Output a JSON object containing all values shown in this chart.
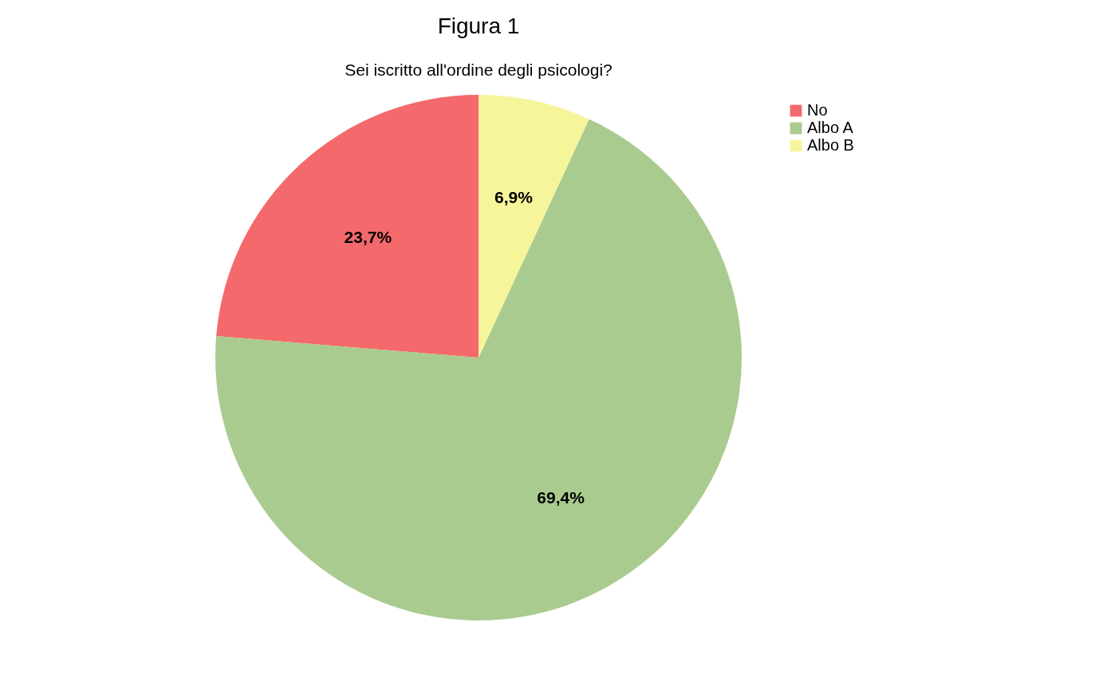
{
  "chart_data": {
    "type": "pie",
    "title": "Figura 1",
    "subtitle": "Sei iscritto all'ordine degli psicologi?",
    "categories": [
      "No",
      "Albo A",
      "Albo B"
    ],
    "values": [
      23.7,
      69.4,
      6.9
    ],
    "colors": [
      "#f4696b",
      "#aacb8f",
      "#f7f59c"
    ],
    "value_labels": [
      "23,7%",
      "69,4%",
      "6,9%"
    ],
    "legend": "right"
  }
}
